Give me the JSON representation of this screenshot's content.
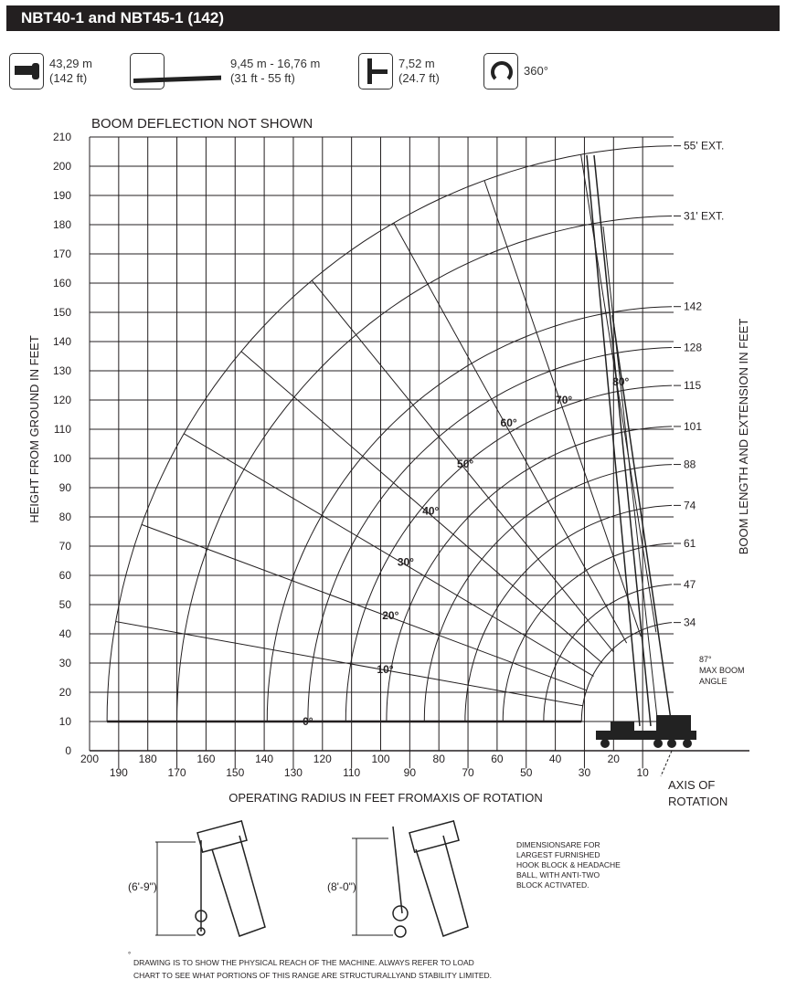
{
  "title": "NBT40-1 and NBT45-1 (142)",
  "specs": [
    {
      "icon": "boom-length-icon",
      "line1": "43,29 m",
      "line2": "(142 ft)"
    },
    {
      "icon": "jib-extension-icon",
      "line1": "9,45 m - 16,76 m",
      "line2": "(31 ft - 55 ft)"
    },
    {
      "icon": "outrigger-span-icon",
      "line1": "7,52 m",
      "line2": "(24.7 ft)"
    },
    {
      "icon": "rotation-icon",
      "line1": "360°",
      "line2": ""
    }
  ],
  "diagram": {
    "note_top": "BOOM DEFLECTION NOT SHOWN",
    "ylabel": "HEIGHT FROM GROUND IN FEET",
    "xlabel": "OPERATING RADIUS IN FEET FROMAXIS OF ROTATION",
    "right_label": "BOOM LENGTH AND EXTENSION IN FEET",
    "y_ticks": [
      0,
      10,
      20,
      30,
      40,
      50,
      60,
      70,
      80,
      90,
      100,
      110,
      120,
      130,
      140,
      150,
      160,
      170,
      180,
      190,
      200,
      210
    ],
    "x_ticks": [
      200,
      190,
      180,
      170,
      160,
      150,
      140,
      130,
      120,
      110,
      100,
      90,
      80,
      70,
      60,
      50,
      40,
      30,
      20,
      10
    ],
    "boom_lengths": [
      {
        "label": "34",
        "length": 34
      },
      {
        "label": "47",
        "length": 47
      },
      {
        "label": "61",
        "length": 61
      },
      {
        "label": "74",
        "length": 74
      },
      {
        "label": "88",
        "length": 88
      },
      {
        "label": "101",
        "length": 101
      },
      {
        "label": "115",
        "length": 115
      },
      {
        "label": "128",
        "length": 128
      },
      {
        "label": "142",
        "length": 142
      },
      {
        "label": "31' EXT.",
        "length": 173
      },
      {
        "label": "55' EXT.",
        "length": 197
      }
    ],
    "angles": [
      {
        "label": "0°",
        "deg": 0
      },
      {
        "label": "10°",
        "deg": 10
      },
      {
        "label": "20°",
        "deg": 20
      },
      {
        "label": "30°",
        "deg": 30
      },
      {
        "label": "40°",
        "deg": 40
      },
      {
        "label": "50°",
        "deg": 50
      },
      {
        "label": "60°",
        "deg": 60
      },
      {
        "label": "70°",
        "deg": 70
      },
      {
        "label": "80°",
        "deg": 80
      }
    ],
    "max_angle_line1": "87°",
    "max_angle_line2": "MAX BOOM",
    "max_angle_line3": "ANGLE",
    "axis_rotation_line1": "AXIS OF",
    "axis_rotation_line2": "ROTATION"
  },
  "hooks": {
    "left_dim": "(6'-9\")",
    "right_dim": "(8'-0\")"
  },
  "dimensions_note": [
    "DIMENSIONSARE FOR",
    "LARGEST FURNISHED",
    "HOOK BLOCK & HEADACHE",
    "BALL, WITH ANTI-TWO",
    "BLOCK ACTIVATED."
  ],
  "footnote_mark": "°",
  "footnote": [
    "DRAWING IS TO SHOW THE PHYSICAL REACH OF THE MACHINE. ALWAYS REFER TO LOAD",
    "CHART TO SEE WHAT PORTIONS OF THIS RANGE ARE STRUCTURALLYAND STABILITY LIMITED."
  ]
}
